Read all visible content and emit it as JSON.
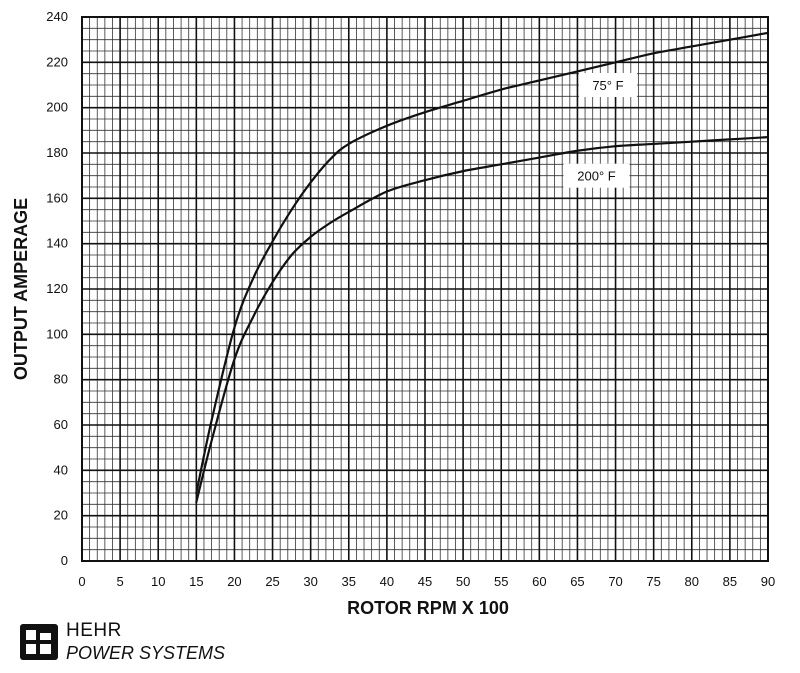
{
  "chart_data": {
    "type": "line",
    "title": "",
    "xlabel": "ROTOR RPM X 100",
    "ylabel": "OUTPUT AMPERAGE",
    "xlim": [
      0,
      90
    ],
    "ylim": [
      0,
      240
    ],
    "x_ticks": [
      "0",
      "5",
      "10",
      "15",
      "20",
      "25",
      "30",
      "35",
      "40",
      "45",
      "50",
      "55",
      "60",
      "65",
      "70",
      "75",
      "80",
      "85",
      "90"
    ],
    "y_ticks": [
      "0",
      "20",
      "40",
      "60",
      "80",
      "100",
      "120",
      "140",
      "160",
      "180",
      "200",
      "220",
      "240"
    ],
    "grid": true,
    "legend": "inline-labels",
    "series": [
      {
        "name": "75° F",
        "x": [
          15,
          17,
          20,
          22.5,
          25,
          27.5,
          30,
          32.5,
          35,
          40,
          45,
          50,
          55,
          60,
          65,
          70,
          75,
          80,
          85,
          90
        ],
        "values": [
          30,
          62,
          103,
          125,
          141,
          155,
          167,
          177,
          184,
          192,
          198,
          203,
          208,
          212,
          216,
          220,
          224,
          227,
          230,
          233
        ]
      },
      {
        "name": "200° F",
        "x": [
          15,
          17,
          20,
          22.5,
          25,
          27.5,
          30,
          32.5,
          35,
          40,
          45,
          50,
          55,
          60,
          65,
          70,
          75,
          80,
          85,
          90
        ],
        "values": [
          26,
          53,
          89,
          108,
          123,
          135,
          143,
          149,
          154,
          163,
          168,
          172,
          175,
          178,
          181,
          183,
          184,
          185,
          186,
          187
        ]
      }
    ]
  },
  "branding": {
    "company": "HEHR",
    "tagline": "POWER SYSTEMS"
  }
}
